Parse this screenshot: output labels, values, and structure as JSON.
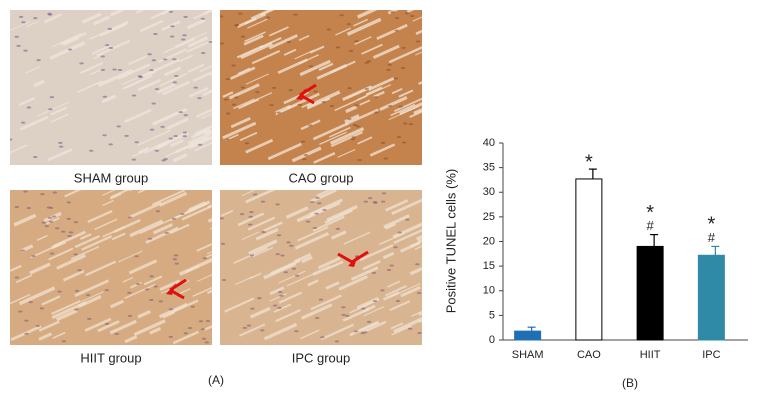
{
  "panels": {
    "label": "(A)",
    "images": [
      {
        "label": "SHAM group"
      },
      {
        "label": "CAO group"
      },
      {
        "label": "HIIT group"
      },
      {
        "label": "IPC group"
      }
    ]
  },
  "chart_data": {
    "type": "bar",
    "panel_label": "(B)",
    "y_label": "Positive TUNEL cells (%)",
    "categories": [
      "SHAM",
      "CAO",
      "HIIT",
      "IPC"
    ],
    "values": [
      1.8,
      32.7,
      19,
      17.2
    ],
    "errors": [
      0.8,
      2,
      2.4,
      1.8
    ],
    "colors": [
      "#1f6fb5",
      "#ffffff",
      "#000000",
      "#2e8aa6"
    ],
    "significance": [
      null,
      [
        "*"
      ],
      [
        "*",
        "#"
      ],
      [
        "*",
        "#"
      ]
    ],
    "ylim": [
      0,
      40
    ],
    "yticks": [
      0,
      5,
      10,
      15,
      20,
      25,
      30,
      35,
      40
    ]
  }
}
